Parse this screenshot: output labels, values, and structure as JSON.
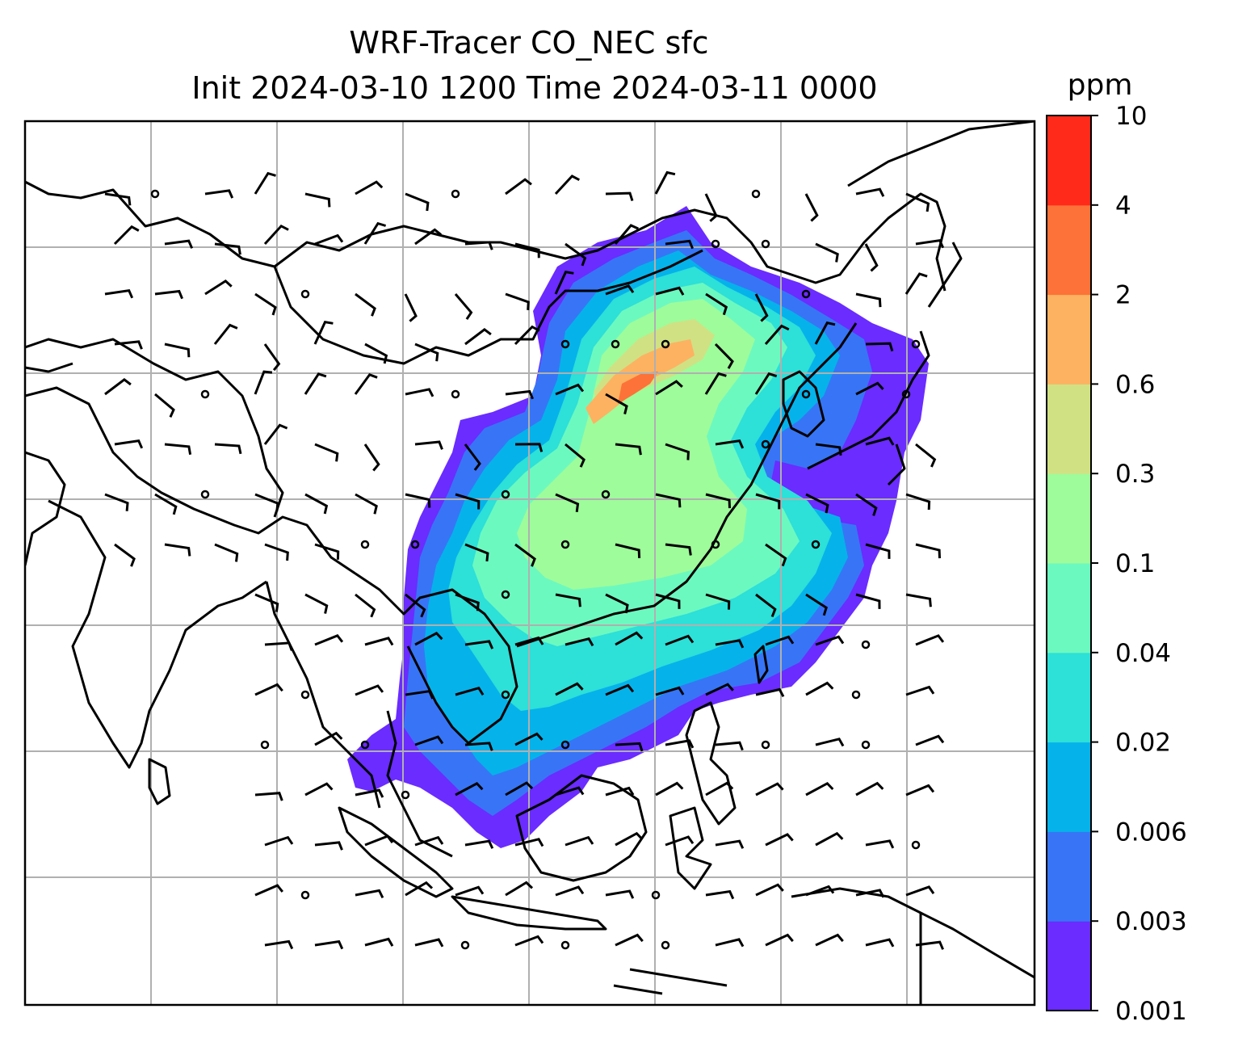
{
  "title": {
    "line1": "WRF-Tracer CO_NEC sfc",
    "line2": "Init 2024-03-10 1200 Time 2024-03-11 0000"
  },
  "colorbar": {
    "units": "ppm",
    "levels": [
      "0.001",
      "0.003",
      "0.006",
      "0.02",
      "0.04",
      "0.1",
      "0.3",
      "0.6",
      "2",
      "4",
      "10"
    ],
    "colors": [
      "#6a2cff",
      "#3775f6",
      "#06b2ea",
      "#2de0d8",
      "#6cf9c0",
      "#9efc9a",
      "#d0e184",
      "#fdb261",
      "#fd7238",
      "#ff2a1a"
    ]
  },
  "map": {
    "land_color": "#ffffff",
    "coastline_color": "#000000",
    "gridline_color": "#b0b0b0",
    "barb_color": "#000000",
    "field": "CO_NEC tracer concentration",
    "level": "sfc"
  }
}
